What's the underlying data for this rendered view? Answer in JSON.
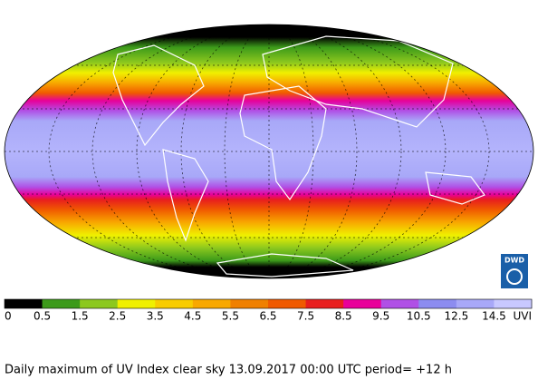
{
  "title": "Daily maximum of UV Index clear sky 13.09.2017  00:00 UTC  period= +12 h",
  "logo": "DWD",
  "legend": {
    "labels": [
      "0",
      "0.5",
      "1.5",
      "2.5",
      "3.5",
      "4.5",
      "5.5",
      "6.5",
      "7.5",
      "8.5",
      "9.5",
      "10.5",
      "12.5",
      "14.5",
      "UVI"
    ],
    "colors": [
      "#000000",
      "#3c9a1a",
      "#8cc81e",
      "#f0f000",
      "#f8cc00",
      "#f8a800",
      "#f08000",
      "#f05a00",
      "#e81e1e",
      "#e8009a",
      "#b050e6",
      "#8c8cf0",
      "#a8a8f8",
      "#c8c8ff"
    ]
  }
}
